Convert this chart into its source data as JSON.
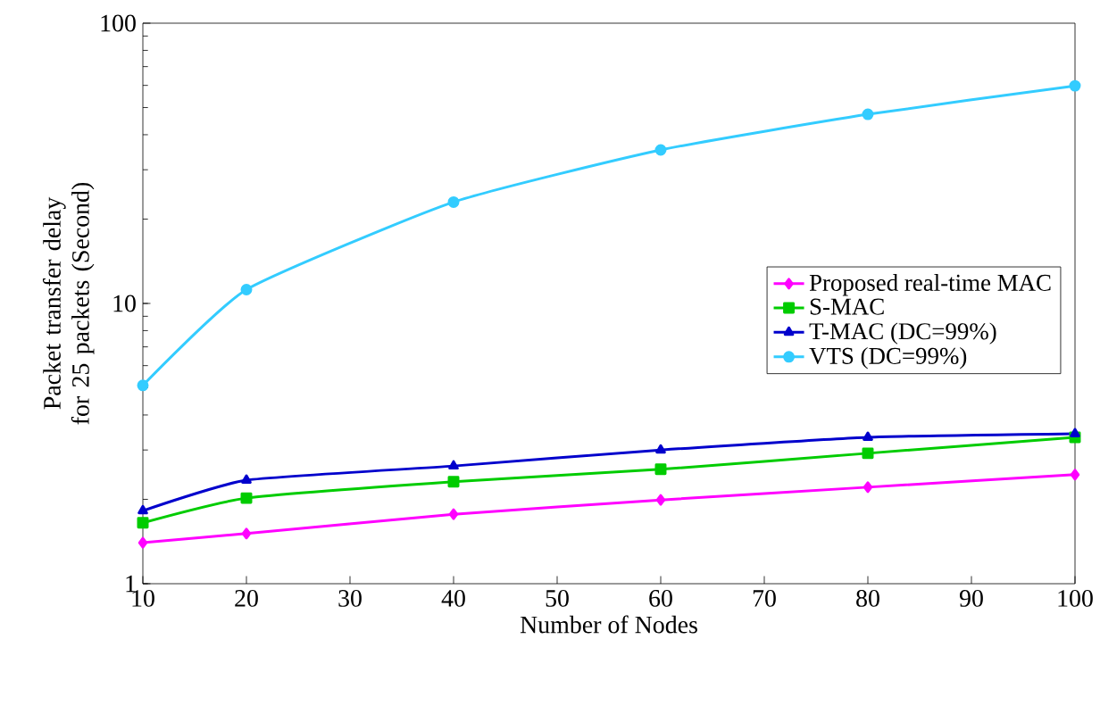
{
  "chart_data": {
    "type": "line",
    "xlabel": "Number of Nodes",
    "ylabel": "Packet transfer delay for 25 packets (Second)",
    "x": [
      10,
      20,
      40,
      60,
      80,
      100
    ],
    "log": "y",
    "xlim": [
      10,
      100
    ],
    "xticks": [
      10,
      20,
      30,
      40,
      50,
      60,
      70,
      80,
      90,
      100
    ],
    "ylim": [
      1,
      100
    ],
    "yticks": [
      1,
      10,
      100
    ],
    "legend": "right",
    "line_style": "solid",
    "series": [
      {
        "name": "Proposed real-time MAC",
        "color": "#ff00ff",
        "marker": "diamond",
        "values": [
          1.4,
          1.51,
          1.77,
          1.99,
          2.21,
          2.45
        ]
      },
      {
        "name": "S-MAC",
        "color": "#00cc00",
        "marker": "square",
        "values": [
          1.65,
          2.02,
          2.31,
          2.56,
          2.92,
          3.33
        ]
      },
      {
        "name": "T-MAC (DC=99%)",
        "color": "#0000cc",
        "marker": "triangle",
        "values": [
          1.82,
          2.34,
          2.63,
          3.0,
          3.33,
          3.43
        ]
      },
      {
        "name": "VTS (DC=99%)",
        "color": "#33ccff",
        "marker": "circle",
        "values": [
          5.1,
          11.2,
          23,
          35.3,
          47.3,
          59.8
        ]
      }
    ]
  }
}
